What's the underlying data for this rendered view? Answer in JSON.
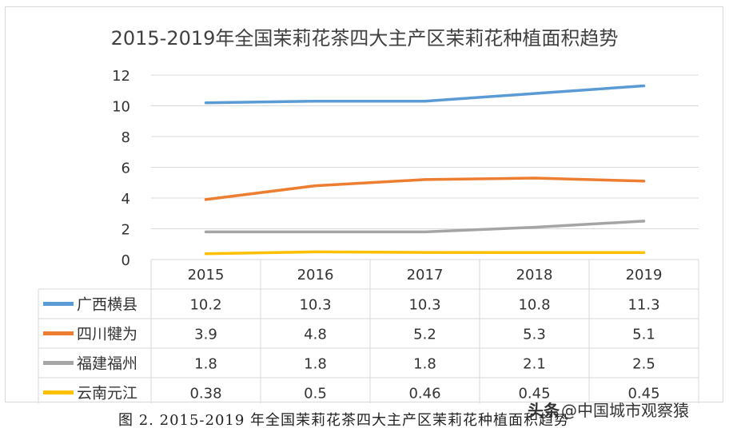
{
  "chart_data": {
    "type": "line",
    "title": "2015-2019年全国茉莉花茶四大主产区茉莉花种植面积趋势",
    "categories": [
      "2015",
      "2016",
      "2017",
      "2018",
      "2019"
    ],
    "ylim": [
      0,
      12
    ],
    "yticks": [
      0,
      2,
      4,
      6,
      8,
      10,
      12
    ],
    "grid": true,
    "legend": "data-table",
    "series": [
      {
        "name": "广西横县",
        "color": "#5b9bd5",
        "values": [
          10.2,
          10.3,
          10.3,
          10.8,
          11.3
        ],
        "labels": [
          "10.2",
          "10.3",
          "10.3",
          "10.8",
          "11.3"
        ]
      },
      {
        "name": "四川犍为",
        "color": "#ed7d31",
        "values": [
          3.9,
          4.8,
          5.2,
          5.3,
          5.1
        ],
        "labels": [
          "3.9",
          "4.8",
          "5.2",
          "5.3",
          "5.1"
        ]
      },
      {
        "name": "福建福州",
        "color": "#a5a5a5",
        "values": [
          1.8,
          1.8,
          1.8,
          2.1,
          2.5
        ],
        "labels": [
          "1.8",
          "1.8",
          "1.8",
          "2.1",
          "2.5"
        ]
      },
      {
        "name": "云南元江",
        "color": "#ffc000",
        "values": [
          0.38,
          0.5,
          0.46,
          0.45,
          0.45
        ],
        "labels": [
          "0.38",
          "0.5",
          "0.46",
          "0.45",
          "0.45"
        ]
      }
    ]
  },
  "caption": "图 2. 2015-2019 年全国茉莉花茶四大主产区茉莉花种植面积趋势",
  "watermark": {
    "prefix": "头条",
    "text": "@中国城市观察猿"
  }
}
